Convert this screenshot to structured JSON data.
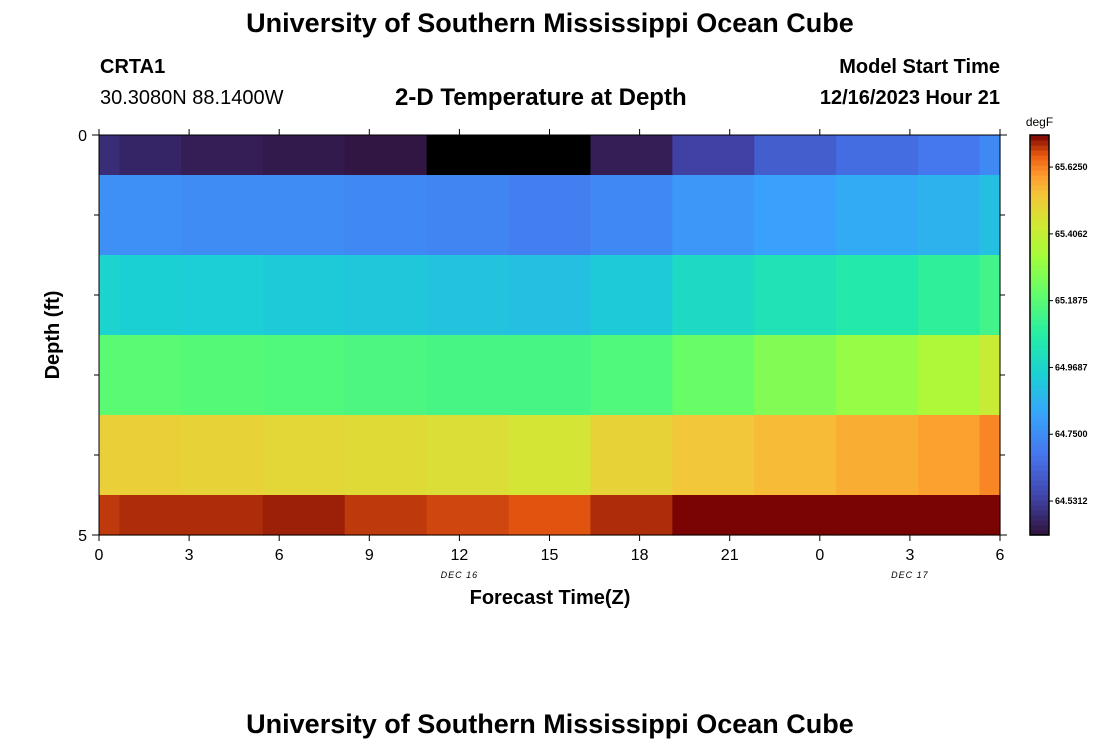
{
  "page": {
    "title": "University of Southern Mississippi Ocean Cube",
    "footer_title": "University of Southern Mississippi Ocean Cube",
    "station": "CRTA1",
    "coords": "30.3080N  88.1400W",
    "plot_title": "2-D Temperature at Depth",
    "model_start_label": "Model Start Time",
    "model_start_value": "12/16/2023 Hour 21"
  },
  "chart_data": {
    "type": "heatmap",
    "title": "2-D Temperature at Depth",
    "xlabel": "Forecast Time(Z)",
    "ylabel": "Depth (ft)",
    "x_tick_labels": [
      "0",
      "3",
      "6",
      "9",
      "12",
      "15",
      "18",
      "21",
      "0",
      "3",
      "6"
    ],
    "date_labels": [
      {
        "text": "DEC 16",
        "at_tick": 4
      },
      {
        "text": "DEC 17",
        "at_tick": 9
      }
    ],
    "y_tick_labels": [
      "0",
      "5"
    ],
    "y_range": [
      0,
      5
    ],
    "y_minor_ticks": 4,
    "rows_depth_ft": [
      0.25,
      1.0,
      2.0,
      3.0,
      4.0,
      4.75
    ],
    "columns_hour": [
      0,
      1.5,
      4.5,
      7.5,
      10.5,
      13.5,
      16.5,
      19.5,
      22.5,
      25.5,
      28.5,
      31.5,
      33
    ],
    "values": [
      [
        64.49,
        64.47,
        64.45,
        64.44,
        64.43,
        64.41,
        64.3,
        64.45,
        64.54,
        64.62,
        64.66,
        64.69,
        64.74
      ],
      [
        64.76,
        64.76,
        64.75,
        64.75,
        64.74,
        64.73,
        64.71,
        64.74,
        64.78,
        64.81,
        64.84,
        64.86,
        64.9
      ],
      [
        64.96,
        64.95,
        64.94,
        64.93,
        64.92,
        64.91,
        64.9,
        64.93,
        64.99,
        65.03,
        65.06,
        65.1,
        65.14
      ],
      [
        65.19,
        65.19,
        65.18,
        65.17,
        65.16,
        65.15,
        65.15,
        65.17,
        65.22,
        65.27,
        65.31,
        65.36,
        65.42
      ],
      [
        65.51,
        65.51,
        65.5,
        65.49,
        65.48,
        65.47,
        65.45,
        65.5,
        65.53,
        65.55,
        65.57,
        65.59,
        65.62
      ],
      [
        65.69,
        65.7,
        65.7,
        65.71,
        65.69,
        65.68,
        65.67,
        65.7,
        65.73,
        65.75,
        65.76,
        65.77,
        65.79
      ]
    ],
    "colorbar": {
      "unit": "degF",
      "min": 64.42,
      "max": 65.73,
      "tick_labels": [
        "64.5312",
        "64.7500",
        "64.9687",
        "65.1875",
        "65.4062",
        "65.6250"
      ],
      "tick_values": [
        64.5312,
        64.75,
        64.9687,
        65.1875,
        65.4062,
        65.625
      ],
      "colormap": "turbo"
    }
  }
}
